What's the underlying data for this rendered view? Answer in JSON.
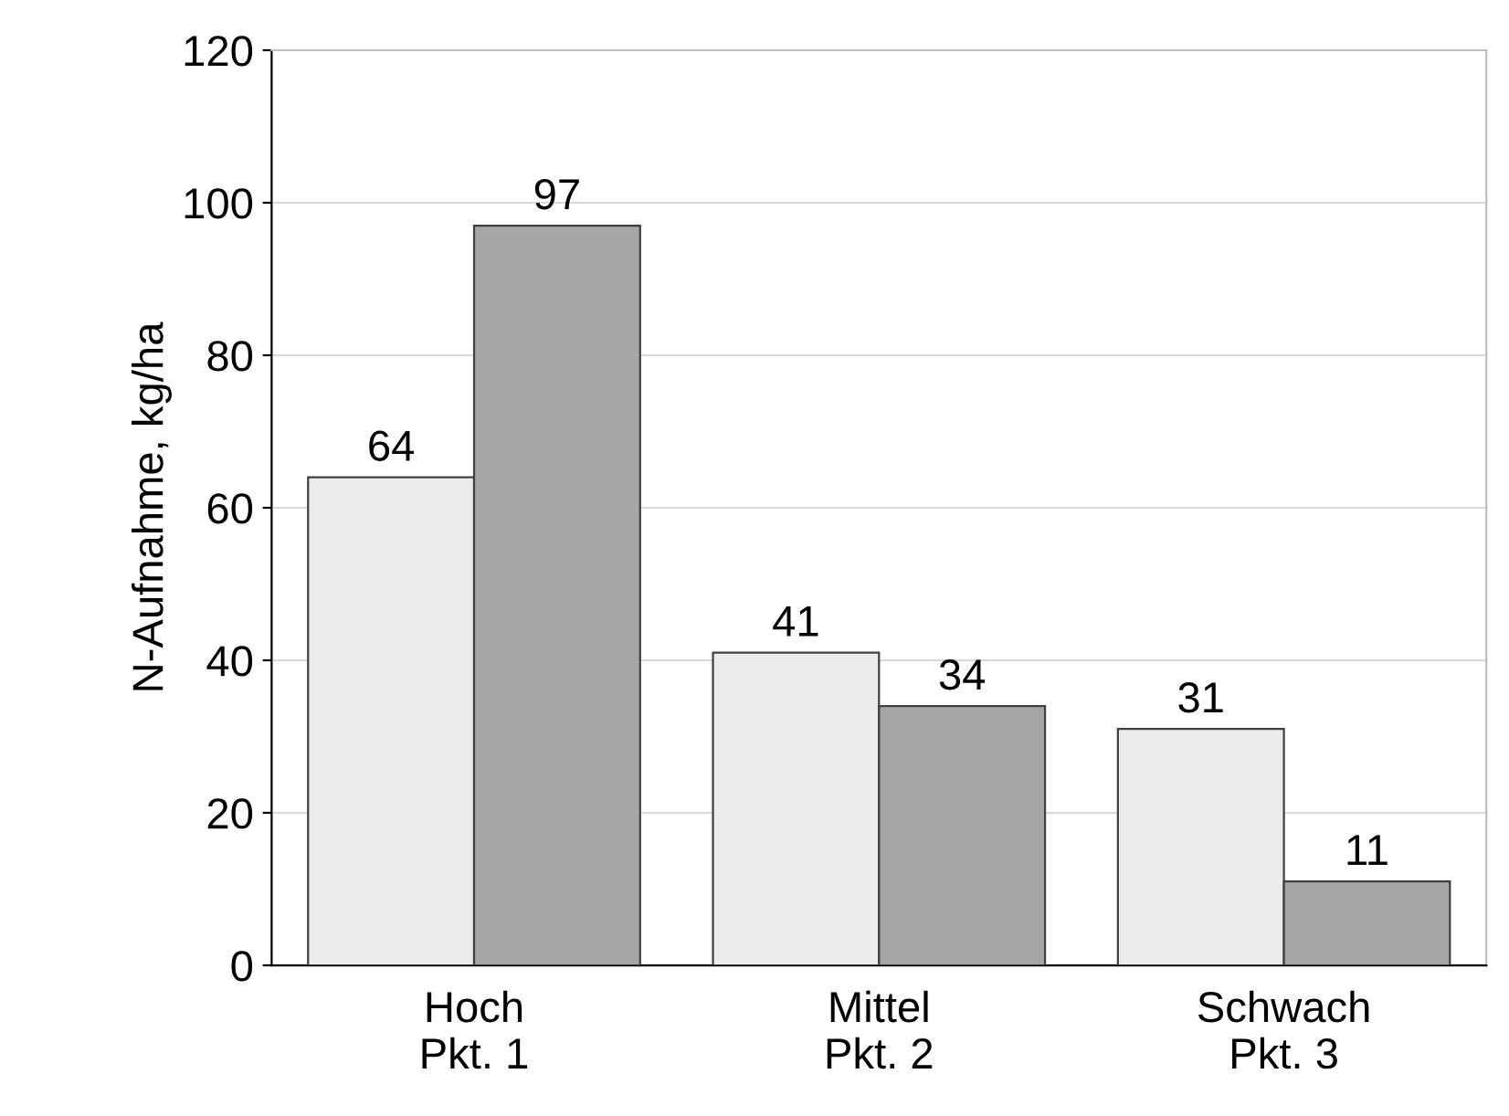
{
  "chart_data": {
    "type": "bar",
    "ylabel": "N-Aufnahme, kg/ha",
    "categories": [
      "Hoch\nPkt. 1",
      "Mittel\nPkt. 2",
      "Schwach\nPkt. 3"
    ],
    "series": [
      {
        "color": "#ececec",
        "values": [
          64,
          41,
          31
        ]
      },
      {
        "color": "#a6a6a6",
        "values": [
          97,
          34,
          11
        ]
      }
    ],
    "ylim": [
      0,
      120
    ],
    "yticks": [
      0,
      20,
      40,
      60,
      80,
      100,
      120
    ],
    "grid": "y",
    "data_labels": true,
    "legend": false
  }
}
